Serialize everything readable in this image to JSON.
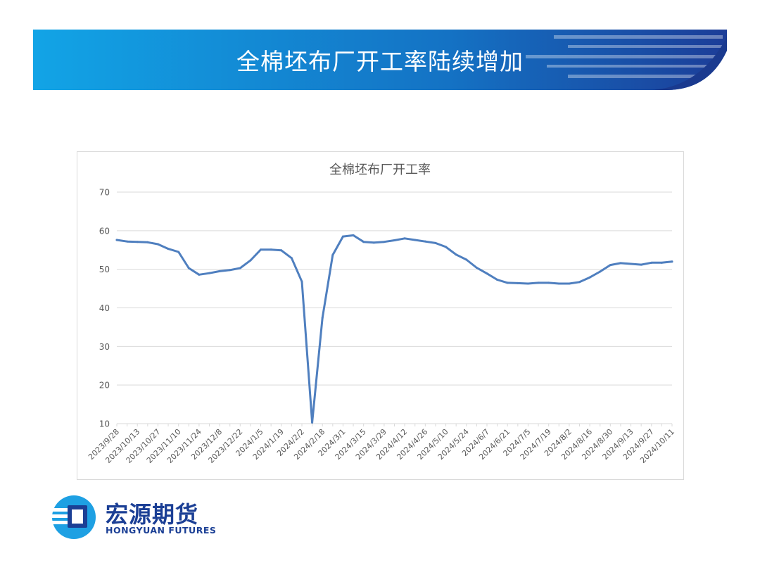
{
  "slide": {
    "title": "全棉坯布厂开工率陆续增加"
  },
  "brand": {
    "name_cn": "宏源期货",
    "name_en": "HONGYUAN FUTURES"
  },
  "colors": {
    "banner_start": "#0f9be0",
    "banner_end": "#1d3d97",
    "series_line": "#4f7fbf",
    "grid": "#d9d9d9",
    "axis_text": "#595959",
    "brand": "#1b3f95"
  },
  "chart_data": {
    "type": "line",
    "title": "全棉坯布厂开工率",
    "xlabel": "",
    "ylabel": "",
    "ylim": [
      10,
      70
    ],
    "yticks": [
      10,
      20,
      30,
      40,
      50,
      60,
      70
    ],
    "grid": true,
    "legend": "none",
    "x_tick_labels": [
      "2023/9/28",
      "2023/10/13",
      "2023/10/27",
      "2023/11/10",
      "2023/11/24",
      "2023/12/8",
      "2023/12/22",
      "2024/1/5",
      "2024/1/19",
      "2024/2/2",
      "2024/2/18",
      "2024/3/1",
      "2024/3/15",
      "2024/3/29",
      "2024/4/12",
      "2024/4/26",
      "2024/5/10",
      "2024/5/24",
      "2024/6/7",
      "2024/6/21",
      "2024/7/5",
      "2024/7/19",
      "2024/8/2",
      "2024/8/16",
      "2024/8/30",
      "2024/9/13",
      "2024/9/27",
      "2024/10/11"
    ],
    "series": [
      {
        "values": [
          57.6,
          57.2,
          57.1,
          57.0,
          56.5,
          55.3,
          54.5,
          50.3,
          48.6,
          49.0,
          49.5,
          49.8,
          50.3,
          52.3,
          55.1,
          55.1,
          54.9,
          52.9,
          46.8,
          10.3,
          37.4,
          53.7,
          58.5,
          58.8,
          57.1,
          56.9,
          57.1,
          57.5,
          58.0,
          57.6,
          57.2,
          56.8,
          55.8,
          53.8,
          52.5,
          50.4,
          48.9,
          47.3,
          46.5,
          46.4,
          46.3,
          46.5,
          46.5,
          46.3,
          46.3,
          46.7,
          47.9,
          49.4,
          51.1,
          51.6,
          51.4,
          51.2,
          51.7,
          51.7,
          52.0
        ]
      }
    ]
  }
}
